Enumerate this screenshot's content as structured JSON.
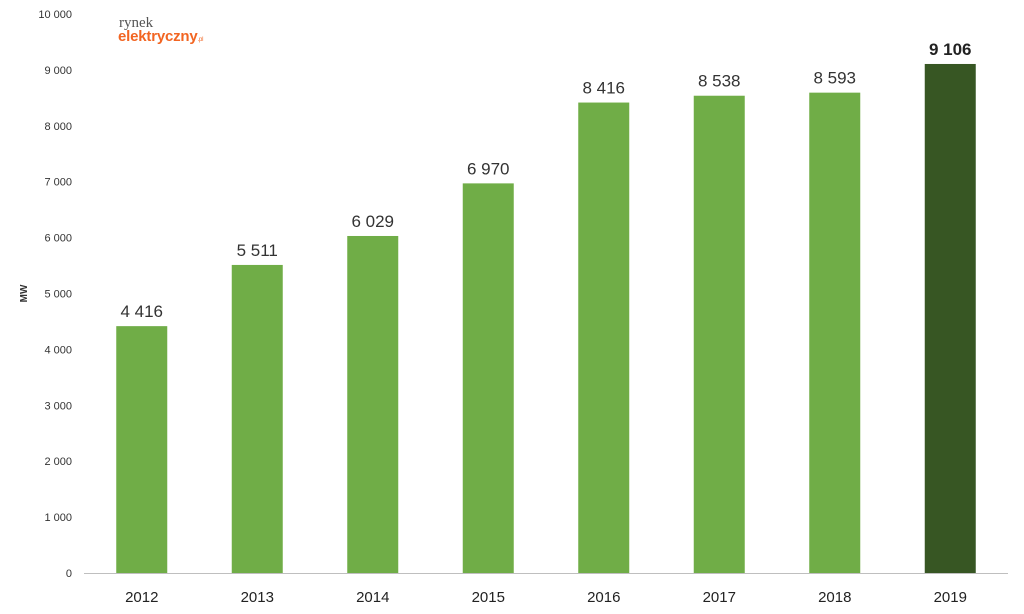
{
  "logo": {
    "line1": "rynek",
    "line2": "elektryczny",
    "suffix": ".pl"
  },
  "colors": {
    "bar": "#70ad47",
    "highlight": "#375623",
    "logo_accent": "#f26522",
    "axis": "#bfbfbf"
  },
  "chart_data": {
    "type": "bar",
    "categories": [
      "2012",
      "2013",
      "2014",
      "2015",
      "2016",
      "2017",
      "2018",
      "2019"
    ],
    "values": [
      4416,
      5511,
      6029,
      6970,
      8416,
      8538,
      8593,
      9106
    ],
    "data_labels": [
      "4 416",
      "5 511",
      "6 029",
      "6 970",
      "8 416",
      "8 538",
      "8 593",
      "9 106"
    ],
    "highlight_index": 7,
    "title": "",
    "xlabel": "",
    "ylabel": "MW",
    "ylim": [
      0,
      10000
    ],
    "yticks": [
      0,
      1000,
      2000,
      3000,
      4000,
      5000,
      6000,
      7000,
      8000,
      9000,
      10000
    ],
    "ytick_labels": [
      "0",
      "1 000",
      "2 000",
      "3 000",
      "4 000",
      "5 000",
      "6 000",
      "7 000",
      "8 000",
      "9 000",
      "10 000"
    ],
    "grid": false,
    "legend": "none"
  }
}
